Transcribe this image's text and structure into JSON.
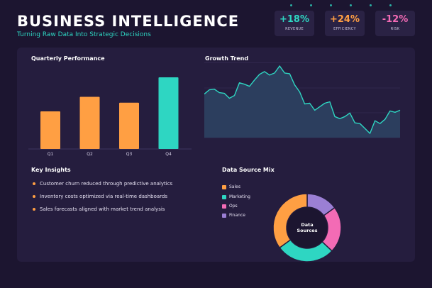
{
  "header": {
    "title": "BUSINESS INTELLIGENCE",
    "subtitle": "Turning Raw Data Into Strategic Decisions"
  },
  "kpis": [
    {
      "value": "+18%",
      "label": "REVENUE",
      "color": "#2ed6c2"
    },
    {
      "value": "+24%",
      "label": "EFFICIENCY",
      "color": "#ff9f43"
    },
    {
      "value": "-12%",
      "label": "RISK",
      "color": "#f36bb5"
    }
  ],
  "insights": {
    "title": "Key Insights",
    "items": [
      "Customer churn reduced through predictive analytics",
      "Inventory costs optimized via real-time dashboards",
      "Sales forecasts aligned with market trend analysis"
    ]
  },
  "chart_data": [
    {
      "type": "bar",
      "title": "Quarterly Performance",
      "categories": [
        "Q1",
        "Q2",
        "Q3",
        "Q4"
      ],
      "values": [
        52,
        72,
        64,
        99
      ],
      "ylim": [
        0,
        100
      ],
      "colors": [
        "#ff9f43",
        "#ff9f43",
        "#ff9f43",
        "#2ed6c2"
      ]
    },
    {
      "type": "area",
      "title": "Growth Trend",
      "values": [
        62,
        68,
        69,
        64,
        63,
        56,
        60,
        78,
        76,
        73,
        82,
        90,
        94,
        89,
        92,
        102,
        92,
        91,
        75,
        65,
        48,
        49,
        39,
        44,
        49,
        51,
        30,
        27,
        30,
        35,
        21,
        20,
        13,
        6,
        24,
        20,
        26,
        38,
        36,
        39
      ],
      "ylim": [
        0,
        105
      ],
      "grid": true,
      "line_color": "#2ed6c2",
      "fill_color": "#2c3e5e"
    },
    {
      "type": "pie",
      "title": "Data Source Mix",
      "center_label": [
        "Data",
        "Sources"
      ],
      "series": [
        {
          "name": "Sales",
          "value": 35,
          "color": "#ff9f43"
        },
        {
          "name": "Marketing",
          "value": 28,
          "color": "#2ed6c2"
        },
        {
          "name": "Ops",
          "value": 22,
          "color": "#f36bb5"
        },
        {
          "name": "Finance",
          "value": 15,
          "color": "#9b7fd4"
        }
      ]
    }
  ]
}
